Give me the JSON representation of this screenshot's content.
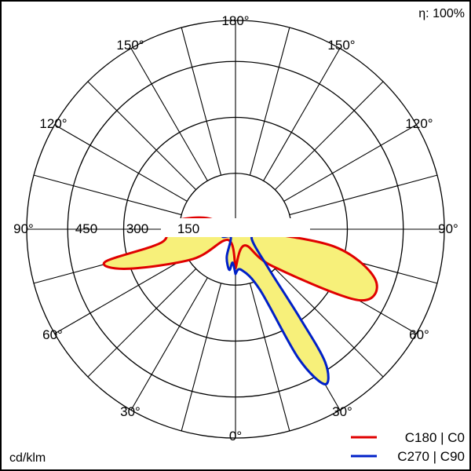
{
  "chart_data": {
    "type": "polar",
    "efficiency_label": "η: 100%",
    "unit_label": "cd/klm",
    "radial_ticks": [
      150,
      300,
      450
    ],
    "radial_max": 560,
    "angle_labels": {
      "top": "180°",
      "bottom": "0°",
      "left": "90°",
      "right": "90°",
      "upper_left_150": "150°",
      "upper_right_150": "150°",
      "upper_left_120": "120°",
      "upper_right_120": "120°",
      "lower_left_60": "60°",
      "lower_right_60": "60°",
      "lower_left_30": "30°",
      "lower_right_30": "30°"
    },
    "ring_labels": [
      "450",
      "300",
      "150"
    ],
    "series": [
      {
        "name": "C180 | C0",
        "color": "#e00000",
        "points": [
          {
            "theta": 0,
            "r": 105
          },
          {
            "theta": 30,
            "r": 50
          },
          {
            "theta": 45,
            "r": 140
          },
          {
            "theta": 60,
            "r": 380
          },
          {
            "theta": 70,
            "r": 400
          },
          {
            "theta": 80,
            "r": 270
          },
          {
            "theta": 88,
            "r": 30
          },
          {
            "theta": 110,
            "r": 30
          },
          {
            "theta": 130,
            "r": 5
          },
          {
            "theta": -130,
            "r": 5
          },
          {
            "theta": -110,
            "r": 90
          },
          {
            "theta": -95,
            "r": 180
          },
          {
            "theta": -80,
            "r": 200
          },
          {
            "theta": -76,
            "r": 360
          },
          {
            "theta": -70,
            "r": 310
          },
          {
            "theta": -55,
            "r": 140
          },
          {
            "theta": -35,
            "r": 35
          },
          {
            "theta": 0,
            "r": 105
          }
        ]
      },
      {
        "name": "C270 | C90",
        "color": "#0020c8",
        "points": [
          {
            "theta": 0,
            "r": 120
          },
          {
            "theta": 8,
            "r": 110
          },
          {
            "theta": 22,
            "r": 175
          },
          {
            "theta": 26,
            "r": 385
          },
          {
            "theta": 30,
            "r": 480
          },
          {
            "theta": 34,
            "r": 430
          },
          {
            "theta": 36,
            "r": 290
          },
          {
            "theta": 40,
            "r": 140
          },
          {
            "theta": 60,
            "r": 50
          },
          {
            "theta": 80,
            "r": 70
          },
          {
            "theta": 95,
            "r": 40
          },
          {
            "theta": 130,
            "r": 5
          },
          {
            "theta": -130,
            "r": 5
          },
          {
            "theta": -95,
            "r": 40
          },
          {
            "theta": -60,
            "r": 40
          },
          {
            "theta": -30,
            "r": 25
          },
          {
            "theta": -18,
            "r": 75
          },
          {
            "theta": -12,
            "r": 100
          },
          {
            "theta": -8,
            "r": 110
          },
          {
            "theta": -5,
            "r": 90
          },
          {
            "theta": 0,
            "r": 120
          }
        ]
      }
    ],
    "fill_color": "#f7f07a",
    "grid": true
  }
}
